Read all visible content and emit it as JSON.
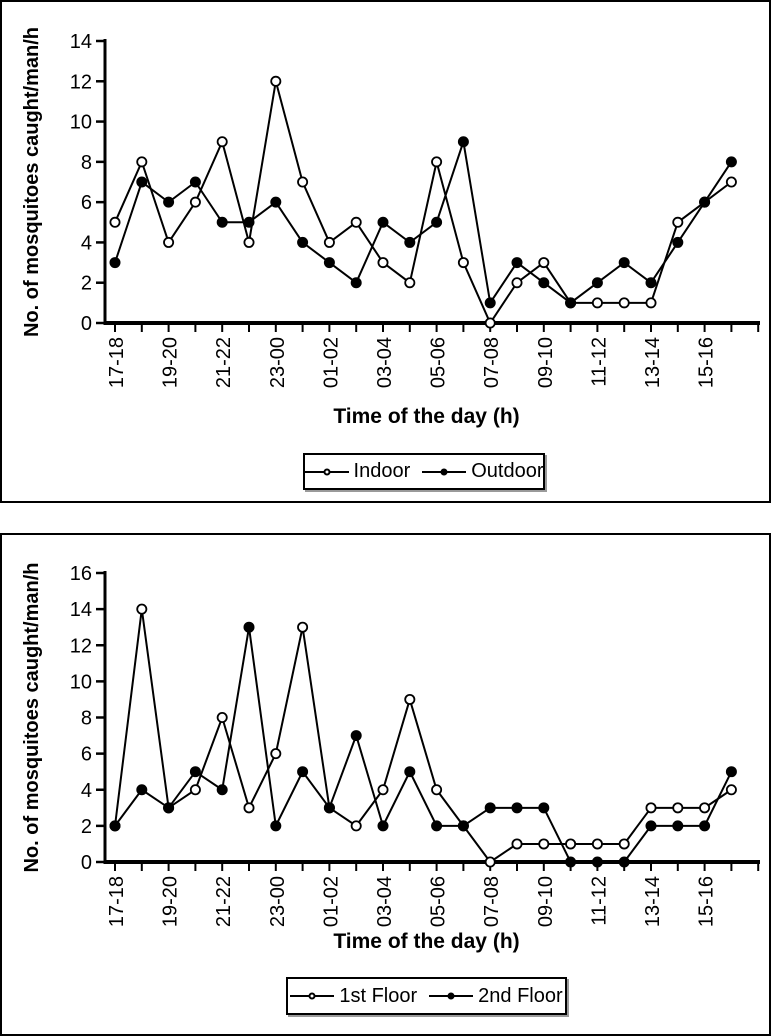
{
  "figure": {
    "background": "#ffffff",
    "frame_color": "#000000",
    "line_color": "#000000"
  },
  "chart_data": [
    {
      "type": "line",
      "title": "",
      "xlabel": "Time of the day (h)",
      "ylabel": "No. of mosquitoes caught/man/h",
      "ylim": [
        0,
        14
      ],
      "yticks": [
        0,
        2,
        4,
        6,
        8,
        10,
        12,
        14
      ],
      "x_labels": [
        "17-18",
        "19-20",
        "21-22",
        "23-00",
        "01-02",
        "03-04",
        "05-06",
        "07-08",
        "09-10",
        "11-12",
        "13-14",
        "15-16"
      ],
      "x_label_interval": 2,
      "n_points": 24,
      "grid": false,
      "legend_position": "below",
      "series": [
        {
          "name": "Indoor",
          "marker": "open-circle",
          "color": "#000000",
          "values": [
            5,
            8,
            4,
            6,
            9,
            4,
            12,
            7,
            4,
            5,
            3,
            2,
            8,
            3,
            0,
            2,
            3,
            1,
            1,
            1,
            1,
            5,
            6,
            7
          ]
        },
        {
          "name": "Outdoor",
          "marker": "filled-circle",
          "color": "#000000",
          "values": [
            3,
            7,
            6,
            7,
            5,
            5,
            6,
            4,
            3,
            2,
            5,
            4,
            5,
            9,
            1,
            3,
            2,
            1,
            2,
            3,
            2,
            4,
            6,
            8
          ]
        }
      ]
    },
    {
      "type": "line",
      "title": "",
      "xlabel": "Time of the day (h)",
      "ylabel": "No. of mosquitoes caught/man/h",
      "ylim": [
        0,
        16
      ],
      "yticks": [
        0,
        2,
        4,
        6,
        8,
        10,
        12,
        14,
        16
      ],
      "x_labels": [
        "17-18",
        "19-20",
        "21-22",
        "23-00",
        "01-02",
        "03-04",
        "05-06",
        "07-08",
        "09-10",
        "11-12",
        "13-14",
        "15-16"
      ],
      "x_label_interval": 2,
      "n_points": 24,
      "grid": false,
      "legend_position": "below",
      "series": [
        {
          "name": "1st Floor",
          "marker": "open-circle",
          "color": "#000000",
          "values": [
            2,
            14,
            3,
            4,
            8,
            3,
            6,
            13,
            3,
            2,
            4,
            9,
            4,
            2,
            0,
            1,
            1,
            1,
            1,
            1,
            3,
            3,
            3,
            4
          ]
        },
        {
          "name": "2nd Floor",
          "marker": "filled-circle",
          "color": "#000000",
          "values": [
            2,
            4,
            3,
            5,
            4,
            13,
            2,
            5,
            3,
            7,
            2,
            5,
            2,
            2,
            3,
            3,
            3,
            0,
            0,
            0,
            2,
            2,
            2,
            5
          ]
        }
      ]
    }
  ]
}
